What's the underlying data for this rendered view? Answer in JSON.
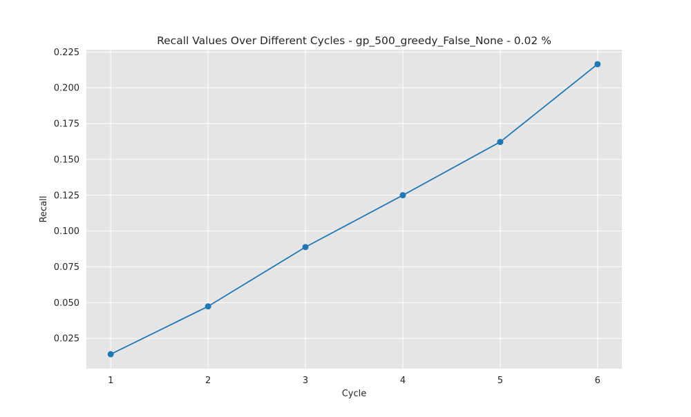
{
  "chart_data": {
    "type": "line",
    "title": "Recall Values Over Different Cycles - gp_500_greedy_False_None - 0.02 %",
    "xlabel": "Cycle",
    "ylabel": "Recall",
    "x": [
      1,
      2,
      3,
      4,
      5,
      6
    ],
    "series": [
      {
        "values": [
          0.014,
          0.0474,
          0.0888,
          0.125,
          0.1622,
          0.2165
        ],
        "color": "#1f77b4",
        "marker": "circle"
      }
    ],
    "xticks": [
      "1",
      "2",
      "3",
      "4",
      "5",
      "6"
    ],
    "yticks": [
      "0.025",
      "0.050",
      "0.075",
      "0.100",
      "0.125",
      "0.150",
      "0.175",
      "0.200",
      "0.225"
    ],
    "xlim": [
      0.75,
      6.25
    ],
    "ylim": [
      0.0039,
      0.2266
    ],
    "grid": true,
    "legend": "none",
    "colors": {
      "plot_background": "#e5e5e5",
      "grid": "#ffffff",
      "line": "#1f77b4"
    }
  }
}
